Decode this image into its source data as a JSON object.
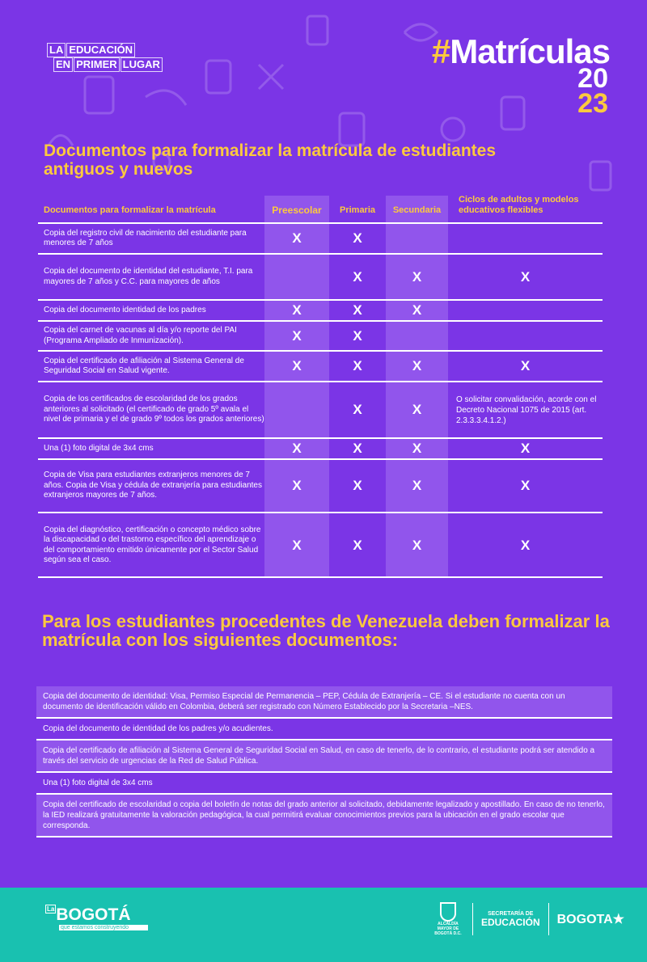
{
  "header": {
    "lema": [
      "LA",
      "EDUCACIÓN",
      "EN",
      "PRIMER",
      "LUGAR"
    ],
    "hashtag_symbol": "#",
    "hashtag_text": "Matrículas",
    "year_top": "20",
    "year_bottom": "23"
  },
  "section1": {
    "title": "Documentos para formalizar la matrícula de estudiantes antiguos y nuevos"
  },
  "table": {
    "columns": [
      "Documentos para formalizar la matrícula",
      "Preescolar",
      "Primaria",
      "Secundaria",
      "Ciclos de adultos y modelos educativos flexibles"
    ],
    "mark": "X",
    "rows": [
      {
        "doc": "Copia del registro civil de nacimiento del estudiante  para menores de 7 años",
        "preescolar": true,
        "primaria": true,
        "secundaria": false,
        "ciclos": false
      },
      {
        "doc": "Copia del documento de identidad del estudiante, T.I. para mayores de 7 años y C.C. para mayores de años",
        "preescolar": false,
        "primaria": true,
        "secundaria": true,
        "ciclos": true
      },
      {
        "doc": "Copia del documento identidad de los padres",
        "preescolar": true,
        "primaria": true,
        "secundaria": true,
        "ciclos": false
      },
      {
        "doc": "Copia del carnet de vacunas al día y/o reporte del PAI (Programa Ampliado de Inmunización).",
        "preescolar": true,
        "primaria": true,
        "secundaria": false,
        "ciclos": false
      },
      {
        "doc": "Copia del certificado de afiliación al Sistema General de Seguridad Social en Salud vigente.",
        "preescolar": true,
        "primaria": true,
        "secundaria": true,
        "ciclos": true
      },
      {
        "doc": "Copia de los certificados de escolaridad de los grados anteriores al solicitado (el certificado de grado 5º avala el nivel de primaria y el de grado 9º todos los grados anteriores)",
        "preescolar": false,
        "primaria": true,
        "secundaria": true,
        "ciclos": "O solicitar convalidación, acorde con el Decreto Nacional 1075 de 2015 (art. 2.3.3.3.4.1.2.)"
      },
      {
        "doc": "Una (1) foto digital de 3x4 cms",
        "preescolar": true,
        "primaria": true,
        "secundaria": true,
        "ciclos": true
      },
      {
        "doc": "Copia de Visa para estudiantes extranjeros menores de 7 años. Copia de Visa y cédula de extranjería para estudiantes extranjeros mayores de 7 años.",
        "preescolar": true,
        "primaria": true,
        "secundaria": true,
        "ciclos": true
      },
      {
        "doc": "Copia del diagnóstico, certificación o concepto médico sobre la discapacidad o del trastorno específico del aprendizaje o del comportamiento emitido únicamente por el Sector Salud según sea el caso.",
        "preescolar": true,
        "primaria": true,
        "secundaria": true,
        "ciclos": true
      }
    ]
  },
  "section2": {
    "title": "Para los estudiantes procedentes de Venezuela deben formalizar la matrícula con los siguientes documentos:",
    "items": [
      "Copia del documento de identidad: Visa, Permiso Especial de Permanencia – PEP, Cédula de Extranjería – CE. Si el estudiante no cuenta con un documento de identificación válido en Colombia, deberá ser registrado con Número Establecido por la Secretaria –NES.",
      "Copia del documento de identidad de los padres y/o acudientes.",
      "Copia del certificado de afiliación al Sistema General de Seguridad Social en Salud, en caso de tenerlo, de lo contrario, el estudiante podrá ser atendido a través del servicio de urgencias de la Red de Salud Pública.",
      "Una (1) foto digital de 3x4 cms",
      "Copia del certificado de escolaridad o copia del boletín de notas del grado anterior al solicitado, debidamente legalizado y apostillado. En caso de no tenerlo, la IED realizará gratuitamente la valoración pedagógica, la cual permitirá evaluar conocimientos previos para la ubicación en el grado escolar que corresponda."
    ]
  },
  "footer": {
    "left_logo": {
      "la": "La",
      "name": "BOGOTÁ",
      "tagline": "que estamos construyendo"
    },
    "alcaldia": "ALCALDÍA MAYOR DE BOGOTÁ D.C.",
    "secretaria_top": "SECRETARÍA DE",
    "secretaria_bottom": "EDUCACIÓN",
    "bogota": "BOGOTA"
  },
  "colors": {
    "background": "#7b35e6",
    "highlight_column": "#9155ec",
    "accent_yellow": "#fcc93e",
    "footer_teal": "#19c1b0"
  }
}
